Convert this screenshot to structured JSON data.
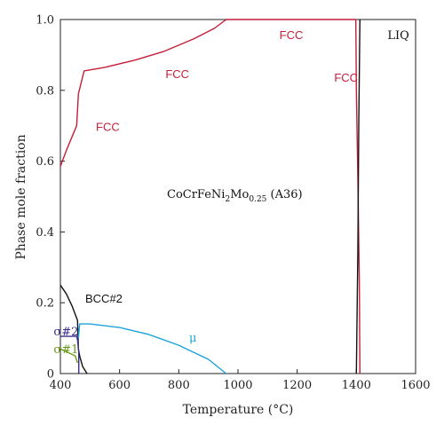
{
  "chart_data": {
    "type": "line",
    "xlabel": "Temperature (°C)",
    "ylabel": "Phase mole fraction",
    "xlim": [
      400,
      1600
    ],
    "ylim": [
      0,
      1.0
    ],
    "xticks": [
      400,
      600,
      800,
      1000,
      1200,
      1400,
      1600
    ],
    "yticks": [
      0,
      0.2,
      0.4,
      0.6,
      0.8,
      1.0
    ],
    "xtick_labels": [
      "400",
      "600",
      "800",
      "1000",
      "1200",
      "1400",
      "1600"
    ],
    "ytick_labels": [
      "0",
      "0.2",
      "0.4",
      "0.6",
      "0.8",
      "1.0"
    ],
    "grid": false,
    "composition": {
      "base": "CoCrFeNi",
      "sub1": "2",
      "mid": "Mo",
      "sub2": "0.25",
      "tag": " (A36)"
    },
    "series": [
      {
        "name": "FCC",
        "color": "#c41e3a",
        "x": [
          400,
          420,
          440,
          455,
          458,
          461,
          480,
          550,
          650,
          750,
          850,
          920,
          960,
          1000,
          1200,
          1398,
          1400,
          1405,
          1410,
          1412
        ],
        "y": [
          0.585,
          0.63,
          0.67,
          0.7,
          0.745,
          0.79,
          0.855,
          0.865,
          0.885,
          0.91,
          0.945,
          0.975,
          1.0,
          1.0,
          1.0,
          1.0,
          0.8,
          0.55,
          0.25,
          0.0
        ]
      },
      {
        "name": "LIQ",
        "color": "#111111",
        "x": [
          1400,
          1405,
          1408,
          1412
        ],
        "y": [
          0.0,
          0.35,
          0.7,
          1.0
        ]
      },
      {
        "name": "BCC#2",
        "color": "#111111",
        "x": [
          400,
          420,
          440,
          458,
          461,
          465,
          475,
          490
        ],
        "y": [
          0.25,
          0.225,
          0.19,
          0.15,
          0.07,
          0.05,
          0.02,
          0.0
        ]
      },
      {
        "name": "σ#2",
        "color": "#3a2f8f",
        "x": [
          400,
          455,
          458,
          462,
          462
        ],
        "y": [
          0.105,
          0.105,
          0.095,
          0.06,
          0.0
        ]
      },
      {
        "name": "σ#1",
        "color": "#6a9a1a",
        "x": [
          400,
          430,
          450,
          458
        ],
        "y": [
          0.07,
          0.058,
          0.05,
          0.03
        ]
      },
      {
        "name": "μ",
        "color": "#1aa3d8",
        "x": [
          461,
          465,
          500,
          600,
          700,
          800,
          900,
          960
        ],
        "y": [
          0.1,
          0.14,
          0.14,
          0.13,
          0.11,
          0.08,
          0.04,
          0.0
        ]
      }
    ],
    "annotations": [
      {
        "text": "FCC",
        "x": 1140,
        "y": 0.945,
        "color": "#c41e3a",
        "style": "sans"
      },
      {
        "text": "FCC",
        "x": 1325,
        "y": 0.825,
        "color": "#c41e3a",
        "style": "sans"
      },
      {
        "text": "FCC",
        "x": 755,
        "y": 0.835,
        "color": "#c41e3a",
        "style": "sans"
      },
      {
        "text": "FCC",
        "x": 520,
        "y": 0.685,
        "color": "#c41e3a",
        "style": "sans"
      },
      {
        "text": "LIQ",
        "x": 1505,
        "y": 0.945,
        "color": "#111111",
        "style": "serif"
      },
      {
        "text": "BCC#2",
        "x": 484,
        "y": 0.2,
        "color": "#111111",
        "style": "sans"
      },
      {
        "text": "σ#2",
        "x": 377,
        "y": 0.108,
        "color": "#3a2f8f",
        "style": "serif"
      },
      {
        "text": "σ#1",
        "x": 377,
        "y": 0.058,
        "color": "#6a9a1a",
        "style": "serif"
      },
      {
        "text": "μ",
        "x": 835,
        "y": 0.09,
        "color": "#1aa3d8",
        "style": "serif"
      }
    ]
  }
}
